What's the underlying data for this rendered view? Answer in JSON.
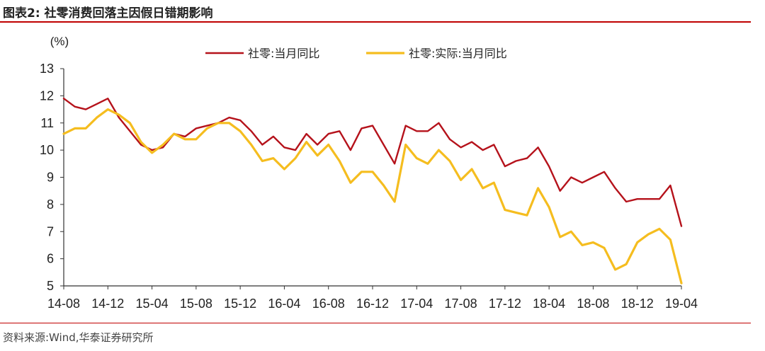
{
  "figure": {
    "title": "图表2:  社零消费回落主因假日错期影响",
    "source": "资料来源:Wind,华泰证券研究所"
  },
  "colors": {
    "accent_rule": "#c00000",
    "series_1": "#b5121b",
    "series_2": "#f5bd1f"
  },
  "chart_data": {
    "type": "line",
    "ylabel": "(%)",
    "ylim": [
      5,
      13
    ],
    "yticks": [
      5,
      6,
      7,
      8,
      9,
      10,
      11,
      12,
      13
    ],
    "xtick_labels": [
      "14-08",
      "14-12",
      "15-04",
      "15-08",
      "15-12",
      "16-04",
      "16-08",
      "16-12",
      "17-04",
      "17-08",
      "17-12",
      "18-04",
      "18-08",
      "18-12",
      "19-04"
    ],
    "x": [
      "14-08",
      "14-09",
      "14-10",
      "14-11",
      "14-12",
      "15-01",
      "15-02",
      "15-03",
      "15-04",
      "15-05",
      "15-06",
      "15-07",
      "15-08",
      "15-09",
      "15-10",
      "15-11",
      "15-12",
      "16-01",
      "16-02",
      "16-03",
      "16-04",
      "16-05",
      "16-06",
      "16-07",
      "16-08",
      "16-09",
      "16-10",
      "16-11",
      "16-12",
      "17-01",
      "17-02",
      "17-03",
      "17-04",
      "17-05",
      "17-06",
      "17-07",
      "17-08",
      "17-09",
      "17-10",
      "17-11",
      "17-12",
      "18-01",
      "18-02",
      "18-03",
      "18-04",
      "18-05",
      "18-06",
      "18-07",
      "18-08",
      "18-09",
      "18-10",
      "18-11",
      "18-12",
      "19-01",
      "19-02",
      "19-03",
      "19-04"
    ],
    "legend_position": "top",
    "grid": false,
    "series": [
      {
        "name": "社零:当月同比",
        "color": "#b5121b",
        "values": [
          11.9,
          11.6,
          11.5,
          11.7,
          11.9,
          11.2,
          10.7,
          10.2,
          10.0,
          10.1,
          10.6,
          10.5,
          10.8,
          10.9,
          11.0,
          11.2,
          11.1,
          10.7,
          10.2,
          10.5,
          10.1,
          10.0,
          10.6,
          10.2,
          10.6,
          10.7,
          10.0,
          10.8,
          10.9,
          10.2,
          9.5,
          10.9,
          10.7,
          10.7,
          11.0,
          10.4,
          10.1,
          10.3,
          10.0,
          10.2,
          9.4,
          9.6,
          9.7,
          10.1,
          9.4,
          8.5,
          9.0,
          8.8,
          9.0,
          9.2,
          8.6,
          8.1,
          8.2,
          8.2,
          8.2,
          8.7,
          7.2
        ]
      },
      {
        "name": "社零:实际:当月同比",
        "color": "#f5bd1f",
        "values": [
          10.6,
          10.8,
          10.8,
          11.2,
          11.5,
          11.3,
          11.0,
          10.3,
          9.9,
          10.2,
          10.6,
          10.4,
          10.4,
          10.8,
          11.0,
          11.0,
          10.7,
          10.2,
          9.6,
          9.7,
          9.3,
          9.7,
          10.3,
          9.8,
          10.2,
          9.6,
          8.8,
          9.2,
          9.2,
          8.7,
          8.1,
          10.2,
          9.7,
          9.5,
          10.0,
          9.6,
          8.9,
          9.3,
          8.6,
          8.8,
          7.8,
          7.7,
          7.6,
          8.6,
          7.9,
          6.8,
          7.0,
          6.5,
          6.6,
          6.4,
          5.6,
          5.8,
          6.6,
          6.9,
          7.1,
          6.7,
          5.1
        ]
      }
    ]
  }
}
